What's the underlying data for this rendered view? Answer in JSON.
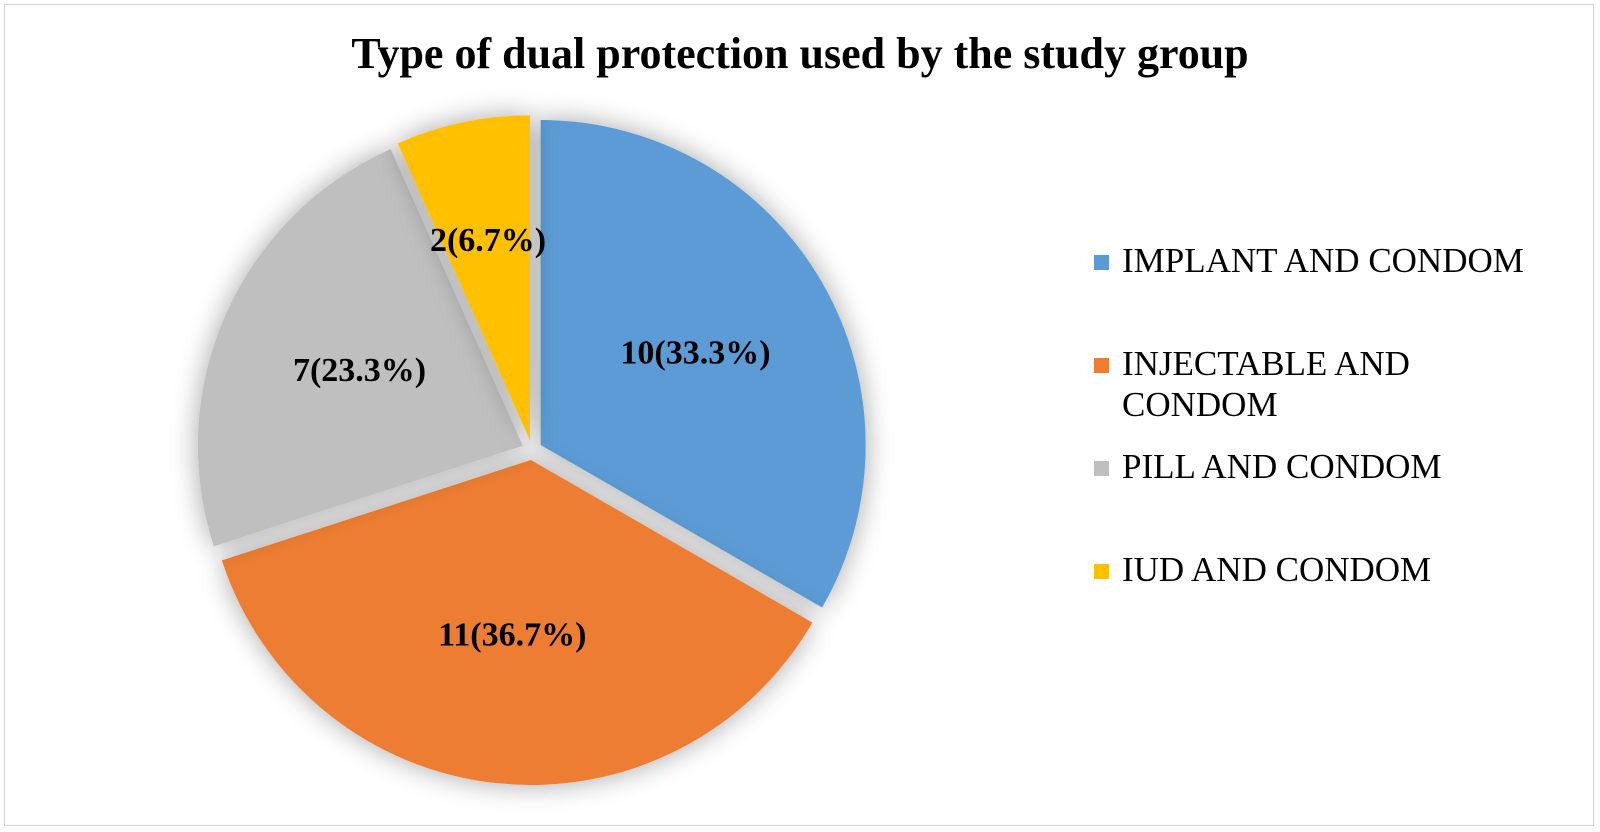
{
  "chart_data": {
    "type": "pie",
    "title": "Type of dual protection used by the study group",
    "slices": [
      {
        "name": "IMPLANT AND CONDOM",
        "value": 10,
        "percent": 33.3,
        "label": "10(33.3%)",
        "color": "#5B9BD5"
      },
      {
        "name": "INJECTABLE AND CONDOM",
        "value": 11,
        "percent": 36.7,
        "label": "11(36.7%)",
        "color": "#ED7D31"
      },
      {
        "name": "PILL AND CONDOM",
        "value": 7,
        "percent": 23.3,
        "label": "7(23.3%)",
        "color": "#BFBFBF"
      },
      {
        "name": "IUD AND CONDOM",
        "value": 2,
        "percent": 6.7,
        "label": "2(6.7%)",
        "color": "#FFC000"
      }
    ],
    "legend_position": "right",
    "exploded": true
  }
}
